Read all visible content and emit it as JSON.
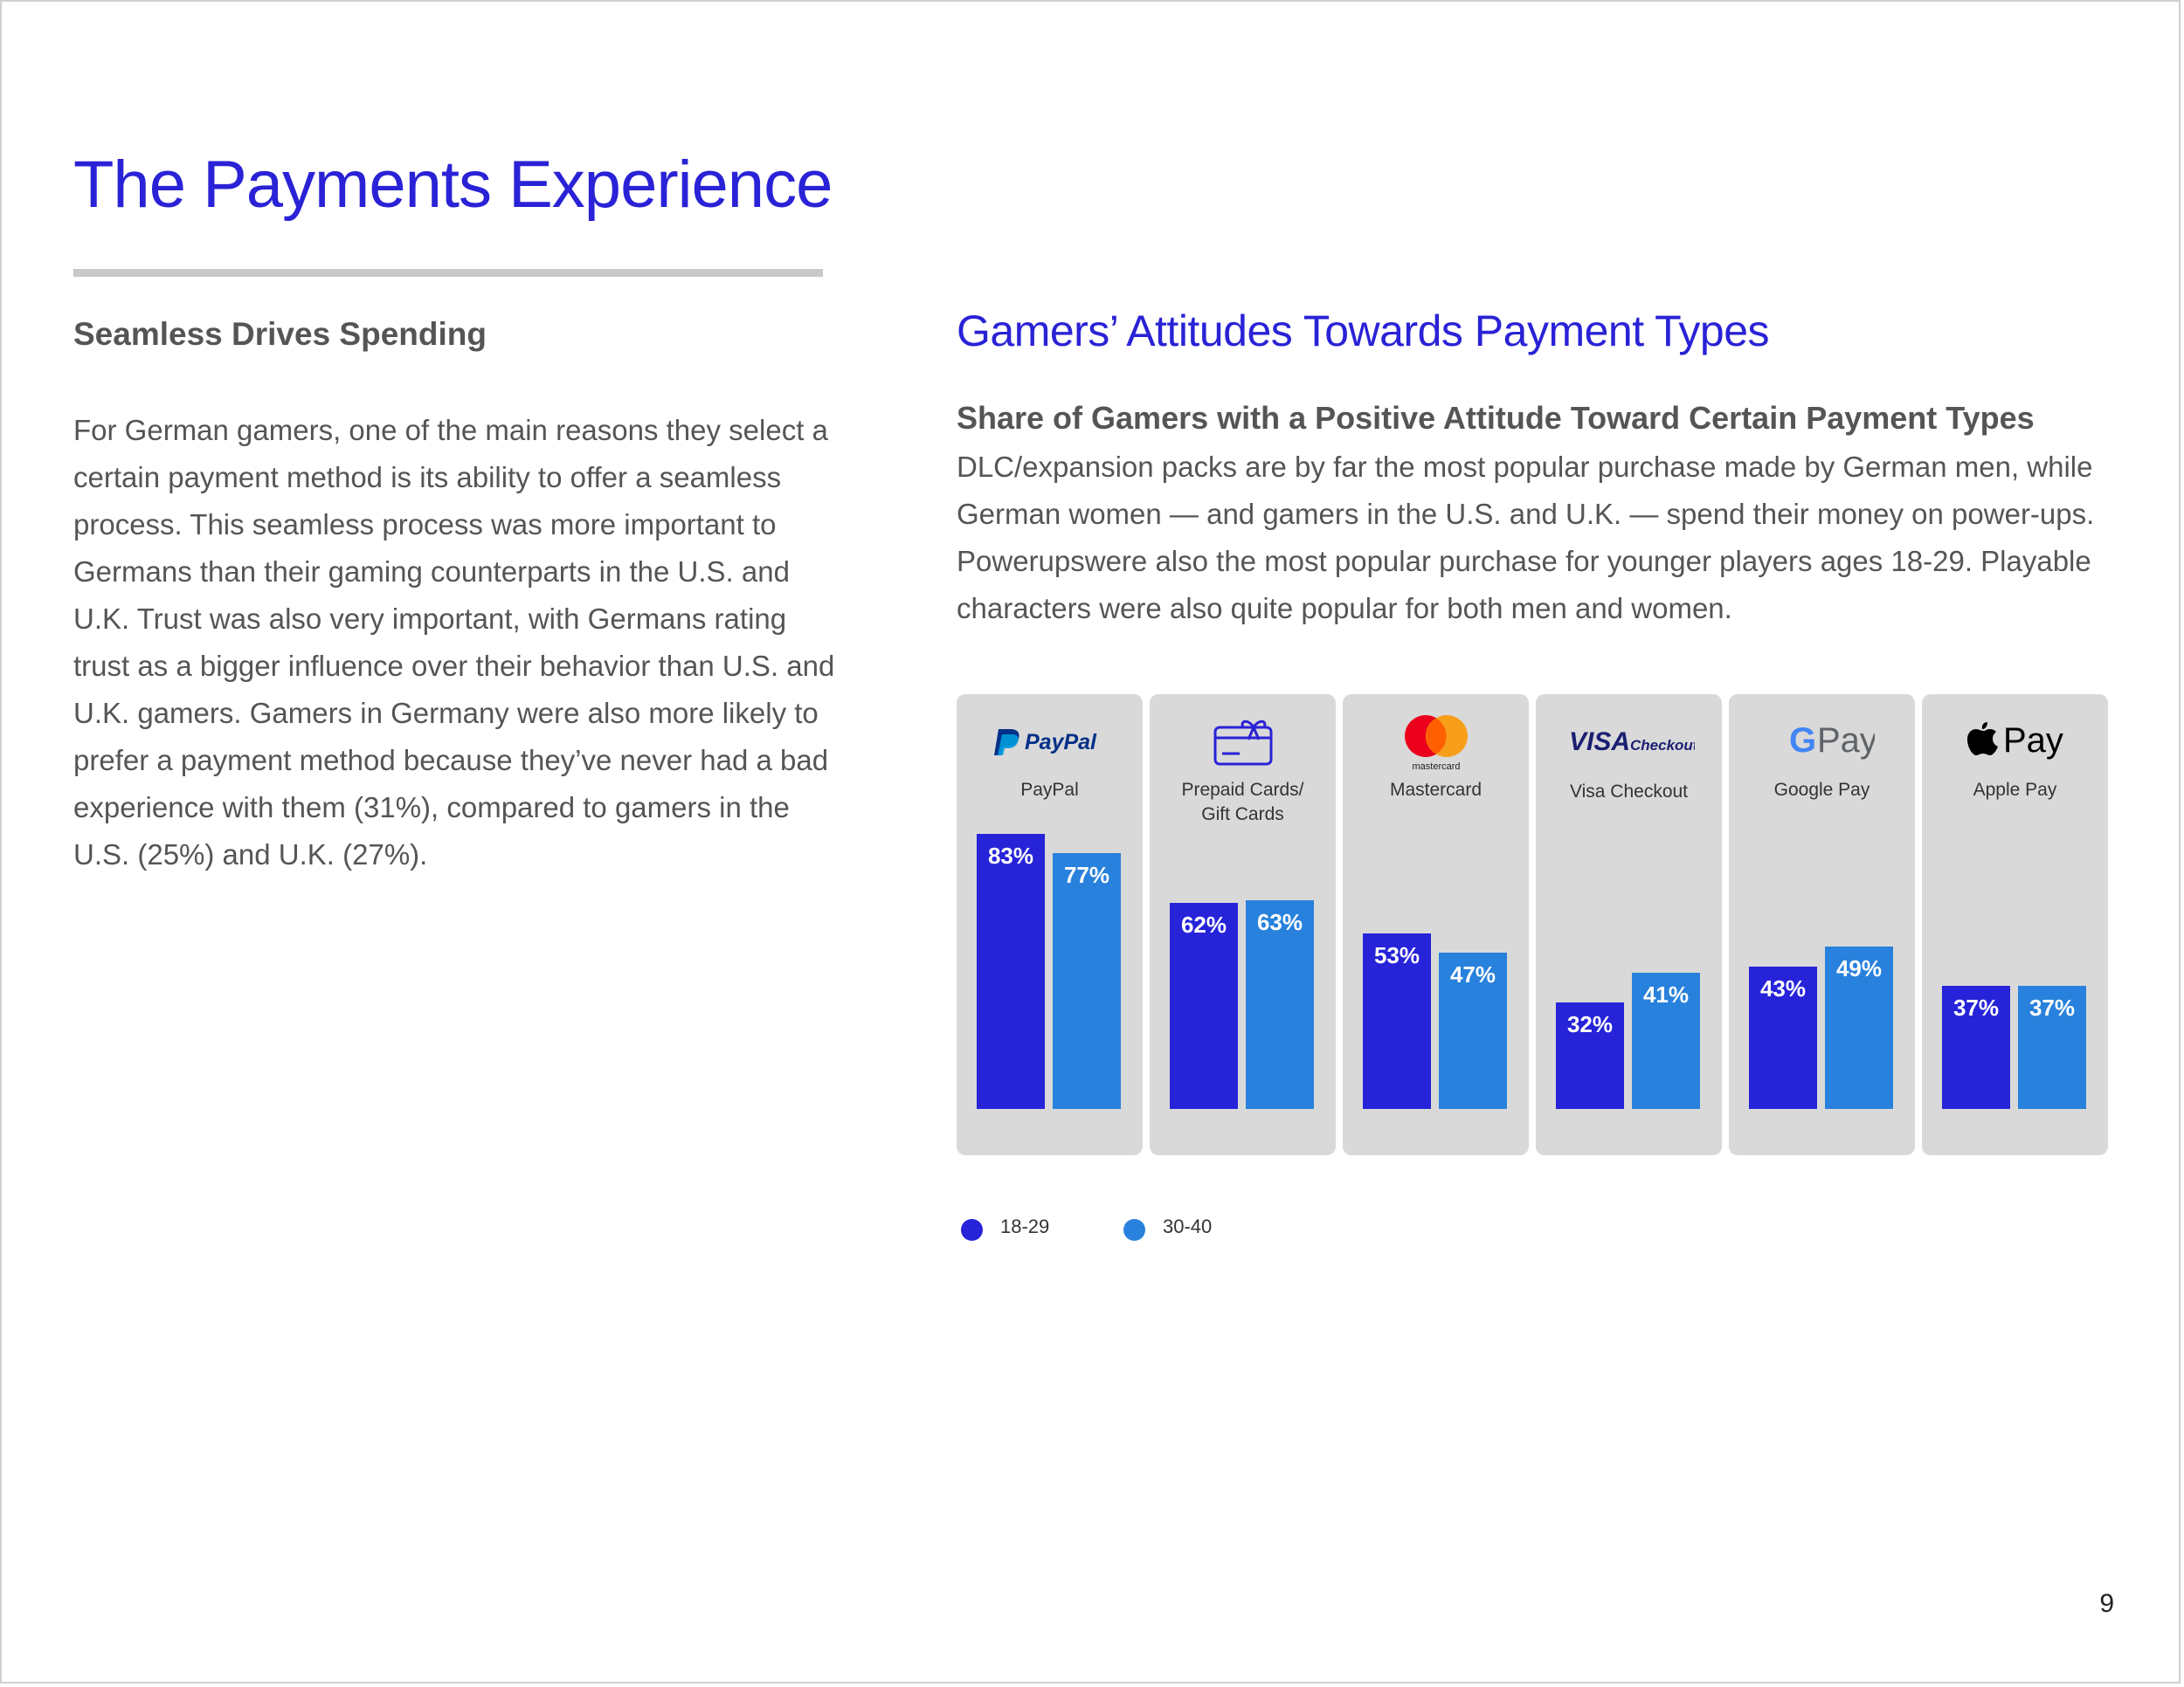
{
  "page": {
    "title": "The Payments Experience",
    "page_number": "9"
  },
  "left": {
    "heading": "Seamless Drives Spending",
    "body": "For German gamers, one of the main reasons they select a certain payment method is its ability to offer a seamless process. This seamless process was more important to Germans than their gaming counterparts in the U.S. and U.K. Trust was also very important, with Germans rating trust as a bigger influence over their behavior than U.S. and U.K. gamers. Gamers in Germany were also more likely to prefer a payment method because they’ve never had a bad experience with them (31%), compared to gamers in the U.S. (25%) and U.K. (27%)."
  },
  "right": {
    "heading": "Gamers’ Attitudes Towards Payment Types",
    "subheading": "Share of Gamers with a Positive Attitude Toward Certain Payment Types",
    "description": "DLC/expansion packs are by far the most popular purchase made by German men, while German women — and gamers in the U.S. and U.K. — spend their money on power-ups. Powerupswere also the most popular purchase for younger players ages 18-29. Playable characters were also quite popular for both men and women."
  },
  "logos": {
    "paypal": "PayPal",
    "mastercard": "mastercard",
    "visa": "VISA",
    "visa_suffix": "Checkout",
    "gpay": "Pay",
    "gpay_g": "G",
    "applepay": "Pay"
  },
  "colors": {
    "accent": "#2a22d6",
    "series_18_29": "#2623d9",
    "series_30_40": "#2881dc",
    "panel": "#d9d9d9"
  },
  "chart_data": {
    "type": "bar",
    "title": "Share of Gamers with a Positive Attitude Toward Certain Payment Types",
    "categories": [
      "PayPal",
      "Prepaid Cards/\nGift Cards",
      "Mastercard",
      "Visa Checkout",
      "Google Pay",
      "Apple Pay"
    ],
    "icons": [
      "paypal-logo",
      "gift-card-icon",
      "mastercard-logo",
      "visa-checkout-logo",
      "google-pay-logo",
      "apple-pay-logo"
    ],
    "series": [
      {
        "name": "18-29",
        "values": [
          83,
          62,
          53,
          32,
          43,
          37
        ],
        "labels": [
          "83%",
          "62%",
          "53%",
          "32%",
          "43%",
          "37%"
        ]
      },
      {
        "name": "30-40",
        "values": [
          77,
          63,
          47,
          41,
          49,
          37
        ],
        "labels": [
          "77%",
          "63%",
          "47%",
          "41%",
          "49%",
          "37%"
        ]
      }
    ],
    "ylim": [
      0,
      100
    ],
    "grid": false,
    "legend": "bottom-left"
  }
}
